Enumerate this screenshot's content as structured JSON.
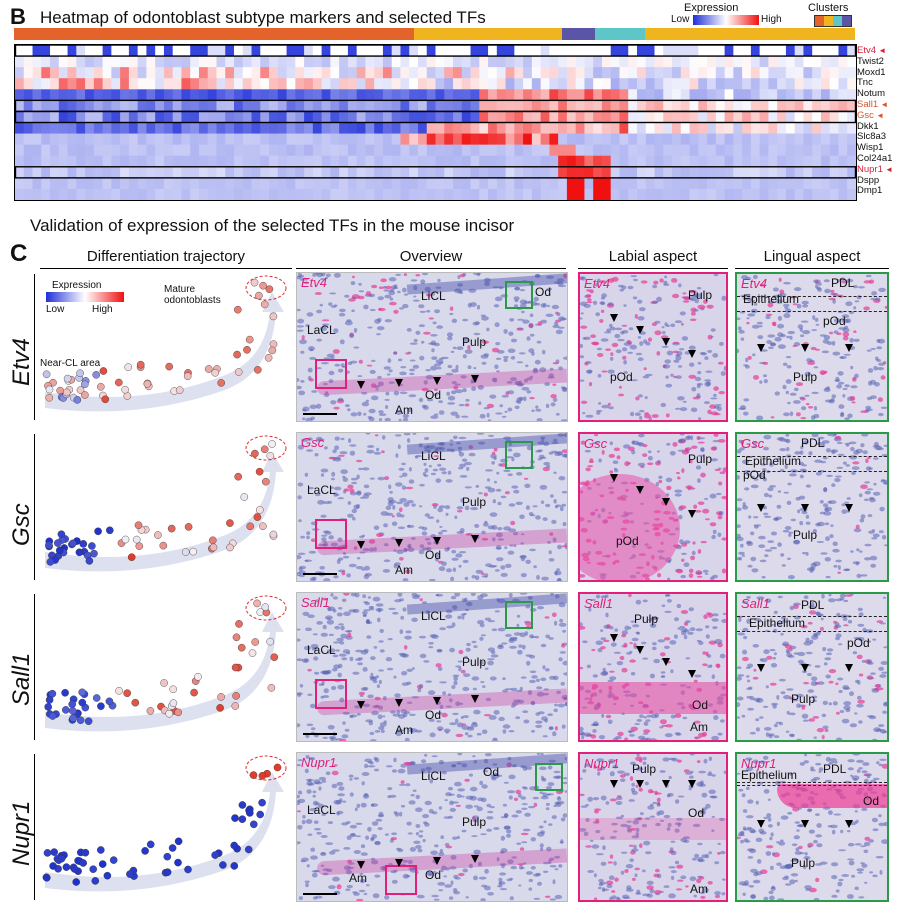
{
  "panelB": {
    "letter": "B",
    "title": "Heatmap of odontoblast subtype markers and selected TFs",
    "legend": {
      "title": "Expression",
      "low": "Low",
      "high": "High"
    },
    "clusters_label": "Clusters",
    "genes": [
      "Etv4",
      "Twist2",
      "Moxd1",
      "Tnc",
      "Notum",
      "Sall1",
      "Gsc",
      "Dkk1",
      "Slc8a3",
      "Wisp1",
      "Col24a1",
      "Nupr1",
      "Dspp",
      "Dmp1"
    ],
    "highlight_genes": [
      "Etv4",
      "Sall1",
      "Gsc",
      "Nupr1"
    ],
    "arrow": "◄",
    "colors": {
      "low": "#1f2fd8",
      "mid": "#ffffff",
      "high": "#f01010",
      "cluster1": "#e4632a",
      "cluster2": "#f0b51e",
      "cluster3": "#5a55a5",
      "cluster4": "#5ec6c6"
    }
  },
  "validation_title": "Validation of expression of the selected TFs in the mouse incisor",
  "panelC": {
    "letter": "C",
    "col_headers": [
      "Differentiation trajectory",
      "Overview",
      "Labial aspect",
      "Lingual aspect"
    ],
    "traj_legend": {
      "title": "Expression",
      "low": "Low",
      "high": "High"
    },
    "traj_labels": {
      "mature": "Mature\nodontoblasts",
      "near": "Near-CL area"
    },
    "rows": [
      {
        "gene": "Etv4",
        "overview": {
          "LiCL": "LiCL",
          "Od": "Od",
          "LaCL": "LaCL",
          "Pulp": "Pulp",
          "Od2": "Od",
          "Am": "Am"
        },
        "labial": [
          "Pulp",
          "pOd"
        ],
        "lingual": [
          "PDL",
          "Epithelium",
          "pOd",
          "Pulp"
        ]
      },
      {
        "gene": "Gsc",
        "overview": {
          "LiCL": "LiCL",
          "Od": "",
          "LaCL": "LaCL",
          "Pulp": "Pulp",
          "Od2": "Od",
          "Am": "Am"
        },
        "labial": [
          "Pulp",
          "pOd"
        ],
        "lingual": [
          "PDL",
          "Epithelium",
          "pOd",
          "Pulp"
        ]
      },
      {
        "gene": "Sall1",
        "overview": {
          "LiCL": "LiCL",
          "Od": "",
          "LaCL": "LaCL",
          "Pulp": "Pulp",
          "Od2": "Od",
          "Am": "Am"
        },
        "labial": [
          "Pulp",
          "Od",
          "Am"
        ],
        "lingual": [
          "PDL",
          "Epithelium",
          "pOd",
          "Pulp"
        ]
      },
      {
        "gene": "Nupr1",
        "overview": {
          "LiCL": "LiCL",
          "Od": "Od",
          "LaCL": "LaCL",
          "Pulp": "Pulp",
          "Od2": "Od",
          "Am": "Am"
        },
        "labial": [
          "Pulp",
          "Od",
          "Am"
        ],
        "lingual": [
          "Epithelium",
          "PDL",
          "Od",
          "Pulp"
        ]
      }
    ]
  }
}
